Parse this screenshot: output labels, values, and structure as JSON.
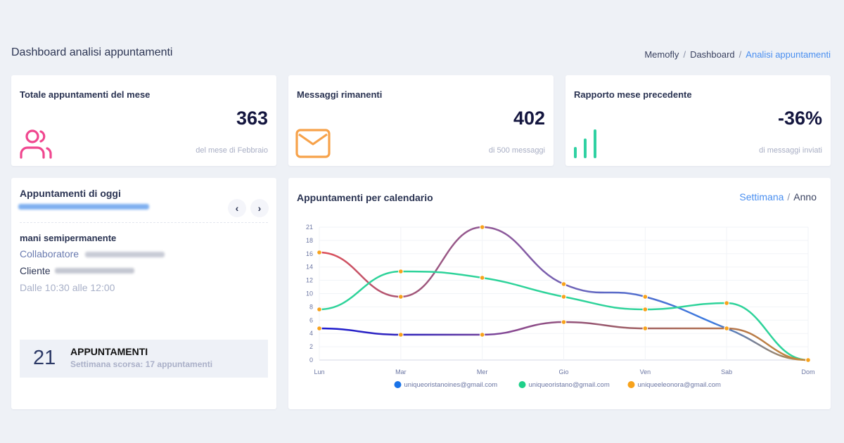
{
  "header": {
    "title": "Dashboard analisi appuntamenti",
    "breadcrumb": [
      {
        "label": "Memofly"
      },
      {
        "label": "Dashboard"
      },
      {
        "label": "Analisi appuntamenti"
      }
    ],
    "separator": "/"
  },
  "stats": [
    {
      "title": "Totale appuntamenti del mese",
      "value": "363",
      "sub": "del mese di Febbraio",
      "icon": "users-icon",
      "color": "#f0478f"
    },
    {
      "title": "Messaggi rimanenti",
      "value": "402",
      "sub": "di 500 messaggi",
      "icon": "mail-icon",
      "color": "#f7a24a"
    },
    {
      "title": "Rapporto mese precedente",
      "value": "-36%",
      "sub": "di messaggi inviati",
      "icon": "bar-chart-icon",
      "color": "#2fd1a2"
    }
  ],
  "today": {
    "title": "Appuntamenti di oggi",
    "prev_label": "‹",
    "next_label": "›",
    "service": "mani semipermanente",
    "collaborator_label": "Collaboratore",
    "client_label": "Cliente",
    "time": "Dalle 10:30 alle 12:00",
    "summary": {
      "count": "21",
      "label": "APPUNTAMENTI",
      "sub": "Settimana scorsa: 17 appuntamenti"
    }
  },
  "calendar_chart": {
    "title": "Appuntamenti per calendario",
    "toggle": {
      "week": "Settimana",
      "separator": "/",
      "year": "Anno"
    }
  },
  "chart_data": {
    "type": "line",
    "title": "Appuntamenti per calendario",
    "categories": [
      "Lun",
      "Mar",
      "Mer",
      "Gio",
      "Ven",
      "Sab",
      "Dom"
    ],
    "y_ticks": [
      "0",
      "2",
      "4",
      "6",
      "8",
      "10",
      "12",
      "14",
      "16",
      "18",
      "21"
    ],
    "ylim": [
      0,
      21
    ],
    "grid": true,
    "legend_position": "bottom",
    "marker_color": "#f7a21b",
    "series": [
      {
        "name": "uniqueoristanoines@gmail.com",
        "legend_color": "#1a73e8",
        "stroke_colors": [
          "#e0505a",
          "#a0577a",
          "#8a5aa0",
          "#5a6ac8",
          "#3a7ae0",
          "#c58a3a"
        ],
        "values": [
          17,
          10,
          21,
          12,
          10,
          5,
          0
        ]
      },
      {
        "name": "uniqueoristano@gmail.com",
        "legend_color": "#1fd08a",
        "stroke_colors": [
          "#2ed39a"
        ],
        "values": [
          8,
          14,
          13,
          10,
          8,
          9,
          0
        ]
      },
      {
        "name": "uniqueeleonora@gmail.com",
        "legend_color": "#f7a21b",
        "stroke_colors": [
          "#1a1ad0",
          "#3a2ab8",
          "#8a4a90",
          "#9a5a6a",
          "#b07050",
          "#c58a3a"
        ],
        "values": [
          5,
          4,
          4,
          6,
          5,
          5,
          0
        ]
      }
    ]
  }
}
